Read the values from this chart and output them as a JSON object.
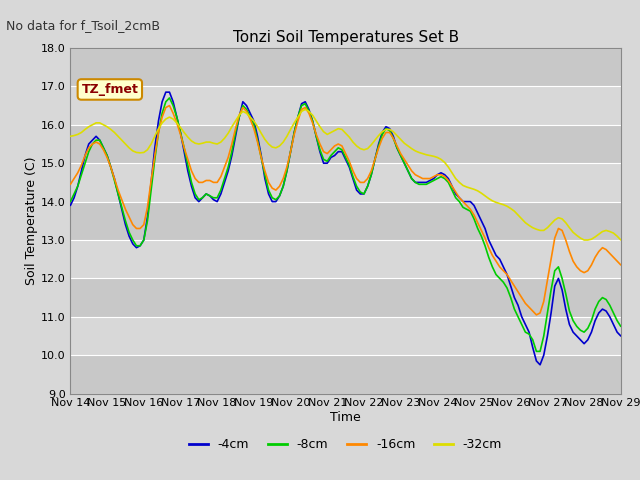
{
  "title": "Tonzi Soil Temperatures Set B",
  "no_data_label": "No data for f_Tsoil_2cmB",
  "tz_fmet_label": "TZ_fmet",
  "xlabel": "Time",
  "ylabel": "Soil Temperature (C)",
  "ylim": [
    9.0,
    18.0
  ],
  "yticks": [
    9.0,
    10.0,
    11.0,
    12.0,
    13.0,
    14.0,
    15.0,
    16.0,
    17.0,
    18.0
  ],
  "x_start_day": 14,
  "x_end_day": 29,
  "xtick_days": [
    14,
    15,
    16,
    17,
    18,
    19,
    20,
    21,
    22,
    23,
    24,
    25,
    26,
    27,
    28,
    29
  ],
  "colors": {
    "-4cm": "#0000cc",
    "-8cm": "#00cc00",
    "-16cm": "#ff8800",
    "-32cm": "#dddd00"
  },
  "background_color": "#d8d8d8",
  "plot_bg_color": "#d8d8d8",
  "grid_color": "#ffffff",
  "series": {
    "-4cm": {
      "x": [
        0,
        0.1,
        0.2,
        0.3,
        0.4,
        0.5,
        0.6,
        0.7,
        0.8,
        0.9,
        1.0,
        1.1,
        1.2,
        1.3,
        1.4,
        1.5,
        1.6,
        1.7,
        1.8,
        1.9,
        2.0,
        2.1,
        2.2,
        2.3,
        2.4,
        2.5,
        2.6,
        2.7,
        2.8,
        2.9,
        3.0,
        3.1,
        3.2,
        3.3,
        3.4,
        3.5,
        3.6,
        3.7,
        3.8,
        3.9,
        4.0,
        4.1,
        4.2,
        4.3,
        4.4,
        4.5,
        4.6,
        4.7,
        4.8,
        4.9,
        5.0,
        5.1,
        5.2,
        5.3,
        5.4,
        5.5,
        5.6,
        5.7,
        5.8,
        5.9,
        6.0,
        6.1,
        6.2,
        6.3,
        6.4,
        6.5,
        6.6,
        6.7,
        6.8,
        6.9,
        7.0,
        7.1,
        7.2,
        7.3,
        7.4,
        7.5,
        7.6,
        7.7,
        7.8,
        7.9,
        8.0,
        8.1,
        8.2,
        8.3,
        8.4,
        8.5,
        8.6,
        8.7,
        8.8,
        8.9,
        9.0,
        9.1,
        9.2,
        9.3,
        9.4,
        9.5,
        9.6,
        9.7,
        9.8,
        9.9,
        10.0,
        10.1,
        10.2,
        10.3,
        10.4,
        10.5,
        10.6,
        10.7,
        10.8,
        10.9,
        11.0,
        11.1,
        11.2,
        11.3,
        11.4,
        11.5,
        11.6,
        11.7,
        11.8,
        11.9,
        12.0,
        12.1,
        12.2,
        12.3,
        12.4,
        12.5,
        12.6,
        12.7,
        12.8,
        12.9,
        13.0,
        13.1,
        13.2,
        13.3,
        13.4,
        13.5,
        13.6,
        13.7,
        13.8,
        13.9,
        14.0,
        14.1,
        14.2,
        14.3,
        14.4,
        14.5,
        14.6,
        14.7,
        14.8,
        14.9,
        15.0
      ],
      "y": [
        13.9,
        14.1,
        14.4,
        14.8,
        15.2,
        15.5,
        15.6,
        15.7,
        15.6,
        15.4,
        15.2,
        14.9,
        14.6,
        14.2,
        13.8,
        13.4,
        13.1,
        12.9,
        12.8,
        12.85,
        13.0,
        13.6,
        14.5,
        15.4,
        16.1,
        16.6,
        16.85,
        16.85,
        16.6,
        16.2,
        15.8,
        15.3,
        14.8,
        14.4,
        14.1,
        14.0,
        14.1,
        14.2,
        14.15,
        14.05,
        14.0,
        14.2,
        14.5,
        14.8,
        15.2,
        15.7,
        16.2,
        16.6,
        16.5,
        16.3,
        16.1,
        15.7,
        15.2,
        14.6,
        14.2,
        14.0,
        14.0,
        14.15,
        14.4,
        14.8,
        15.3,
        15.8,
        16.2,
        16.55,
        16.6,
        16.4,
        16.1,
        15.7,
        15.3,
        15.0,
        15.0,
        15.15,
        15.2,
        15.3,
        15.3,
        15.1,
        14.9,
        14.6,
        14.3,
        14.2,
        14.2,
        14.4,
        14.7,
        15.1,
        15.5,
        15.8,
        15.95,
        15.9,
        15.7,
        15.4,
        15.2,
        15.0,
        14.8,
        14.6,
        14.5,
        14.5,
        14.5,
        14.5,
        14.55,
        14.6,
        14.7,
        14.75,
        14.7,
        14.6,
        14.4,
        14.2,
        14.1,
        14.0,
        14.0,
        14.0,
        13.9,
        13.7,
        13.5,
        13.3,
        13.0,
        12.8,
        12.6,
        12.5,
        12.3,
        12.1,
        11.8,
        11.5,
        11.3,
        11.0,
        10.8,
        10.6,
        10.2,
        9.85,
        9.75,
        10.0,
        10.5,
        11.1,
        11.8,
        12.0,
        11.7,
        11.2,
        10.8,
        10.6,
        10.5,
        10.4,
        10.3,
        10.4,
        10.6,
        10.9,
        11.1,
        11.2,
        11.15,
        11.0,
        10.8,
        10.6,
        10.5
      ]
    },
    "-8cm": {
      "x": [
        0,
        0.1,
        0.2,
        0.3,
        0.4,
        0.5,
        0.6,
        0.7,
        0.8,
        0.9,
        1.0,
        1.1,
        1.2,
        1.3,
        1.4,
        1.5,
        1.6,
        1.7,
        1.8,
        1.9,
        2.0,
        2.1,
        2.2,
        2.3,
        2.4,
        2.5,
        2.6,
        2.7,
        2.8,
        2.9,
        3.0,
        3.1,
        3.2,
        3.3,
        3.4,
        3.5,
        3.6,
        3.7,
        3.8,
        3.9,
        4.0,
        4.1,
        4.2,
        4.3,
        4.4,
        4.5,
        4.6,
        4.7,
        4.8,
        4.9,
        5.0,
        5.1,
        5.2,
        5.3,
        5.4,
        5.5,
        5.6,
        5.7,
        5.8,
        5.9,
        6.0,
        6.1,
        6.2,
        6.3,
        6.4,
        6.5,
        6.6,
        6.7,
        6.8,
        6.9,
        7.0,
        7.1,
        7.2,
        7.3,
        7.4,
        7.5,
        7.6,
        7.7,
        7.8,
        7.9,
        8.0,
        8.1,
        8.2,
        8.3,
        8.4,
        8.5,
        8.6,
        8.7,
        8.8,
        8.9,
        9.0,
        9.1,
        9.2,
        9.3,
        9.4,
        9.5,
        9.6,
        9.7,
        9.8,
        9.9,
        10.0,
        10.1,
        10.2,
        10.3,
        10.4,
        10.5,
        10.6,
        10.7,
        10.8,
        10.9,
        11.0,
        11.1,
        11.2,
        11.3,
        11.4,
        11.5,
        11.6,
        11.7,
        11.8,
        11.9,
        12.0,
        12.1,
        12.2,
        12.3,
        12.4,
        12.5,
        12.6,
        12.7,
        12.8,
        12.9,
        13.0,
        13.1,
        13.2,
        13.3,
        13.4,
        13.5,
        13.6,
        13.7,
        13.8,
        13.9,
        14.0,
        14.1,
        14.2,
        14.3,
        14.4,
        14.5,
        14.6,
        14.7,
        14.8,
        14.9,
        15.0
      ],
      "y": [
        14.0,
        14.2,
        14.4,
        14.7,
        15.0,
        15.3,
        15.5,
        15.6,
        15.6,
        15.4,
        15.2,
        14.9,
        14.55,
        14.2,
        13.85,
        13.5,
        13.2,
        13.0,
        12.85,
        12.85,
        13.0,
        13.5,
        14.3,
        15.1,
        15.8,
        16.3,
        16.6,
        16.7,
        16.5,
        16.2,
        15.8,
        15.4,
        14.95,
        14.5,
        14.2,
        14.05,
        14.1,
        14.2,
        14.15,
        14.1,
        14.1,
        14.3,
        14.6,
        14.9,
        15.3,
        15.8,
        16.2,
        16.5,
        16.4,
        16.2,
        16.0,
        15.6,
        15.15,
        14.7,
        14.3,
        14.1,
        14.05,
        14.15,
        14.4,
        14.8,
        15.3,
        15.8,
        16.2,
        16.5,
        16.55,
        16.35,
        16.1,
        15.7,
        15.35,
        15.1,
        15.05,
        15.2,
        15.3,
        15.4,
        15.35,
        15.15,
        14.95,
        14.65,
        14.4,
        14.25,
        14.2,
        14.4,
        14.7,
        15.1,
        15.45,
        15.75,
        15.9,
        15.85,
        15.65,
        15.4,
        15.2,
        15.0,
        14.8,
        14.6,
        14.5,
        14.45,
        14.45,
        14.45,
        14.5,
        14.55,
        14.6,
        14.65,
        14.6,
        14.5,
        14.3,
        14.1,
        14.0,
        13.85,
        13.8,
        13.75,
        13.55,
        13.3,
        13.1,
        12.85,
        12.55,
        12.3,
        12.1,
        12.0,
        11.9,
        11.75,
        11.5,
        11.2,
        11.0,
        10.8,
        10.6,
        10.55,
        10.4,
        10.1,
        10.1,
        10.5,
        11.1,
        11.7,
        12.2,
        12.3,
        12.0,
        11.6,
        11.15,
        10.9,
        10.75,
        10.65,
        10.6,
        10.7,
        10.9,
        11.2,
        11.4,
        11.5,
        11.45,
        11.3,
        11.1,
        10.9,
        10.75
      ]
    },
    "-16cm": {
      "x": [
        0,
        0.1,
        0.2,
        0.3,
        0.4,
        0.5,
        0.6,
        0.7,
        0.8,
        0.9,
        1.0,
        1.1,
        1.2,
        1.3,
        1.4,
        1.5,
        1.6,
        1.7,
        1.8,
        1.9,
        2.0,
        2.1,
        2.2,
        2.3,
        2.4,
        2.5,
        2.6,
        2.7,
        2.8,
        2.9,
        3.0,
        3.1,
        3.2,
        3.3,
        3.4,
        3.5,
        3.6,
        3.7,
        3.8,
        3.9,
        4.0,
        4.1,
        4.2,
        4.3,
        4.4,
        4.5,
        4.6,
        4.7,
        4.8,
        4.9,
        5.0,
        5.1,
        5.2,
        5.3,
        5.4,
        5.5,
        5.6,
        5.7,
        5.8,
        5.9,
        6.0,
        6.1,
        6.2,
        6.3,
        6.4,
        6.5,
        6.6,
        6.7,
        6.8,
        6.9,
        7.0,
        7.1,
        7.2,
        7.3,
        7.4,
        7.5,
        7.6,
        7.7,
        7.8,
        7.9,
        8.0,
        8.1,
        8.2,
        8.3,
        8.4,
        8.5,
        8.6,
        8.7,
        8.8,
        8.9,
        9.0,
        9.1,
        9.2,
        9.3,
        9.4,
        9.5,
        9.6,
        9.7,
        9.8,
        9.9,
        10.0,
        10.1,
        10.2,
        10.3,
        10.4,
        10.5,
        10.6,
        10.7,
        10.8,
        10.9,
        11.0,
        11.1,
        11.2,
        11.3,
        11.4,
        11.5,
        11.6,
        11.7,
        11.8,
        11.9,
        12.0,
        12.1,
        12.2,
        12.3,
        12.4,
        12.5,
        12.6,
        12.7,
        12.8,
        12.9,
        13.0,
        13.1,
        13.2,
        13.3,
        13.4,
        13.5,
        13.6,
        13.7,
        13.8,
        13.9,
        14.0,
        14.1,
        14.2,
        14.3,
        14.4,
        14.5,
        14.6,
        14.7,
        14.8,
        14.9,
        15.0
      ],
      "y": [
        14.45,
        14.6,
        14.75,
        14.95,
        15.2,
        15.4,
        15.5,
        15.55,
        15.5,
        15.35,
        15.15,
        14.9,
        14.6,
        14.3,
        14.05,
        13.8,
        13.6,
        13.4,
        13.3,
        13.3,
        13.4,
        13.85,
        14.55,
        15.2,
        15.8,
        16.2,
        16.45,
        16.5,
        16.3,
        16.05,
        15.75,
        15.4,
        15.1,
        14.8,
        14.6,
        14.5,
        14.5,
        14.55,
        14.55,
        14.5,
        14.5,
        14.65,
        14.9,
        15.15,
        15.5,
        15.9,
        16.25,
        16.45,
        16.35,
        16.15,
        15.9,
        15.55,
        15.15,
        14.8,
        14.5,
        14.35,
        14.3,
        14.4,
        14.6,
        14.9,
        15.3,
        15.75,
        16.1,
        16.4,
        16.45,
        16.3,
        16.05,
        15.75,
        15.5,
        15.3,
        15.25,
        15.35,
        15.45,
        15.5,
        15.45,
        15.25,
        15.05,
        14.8,
        14.6,
        14.5,
        14.5,
        14.6,
        14.8,
        15.1,
        15.4,
        15.65,
        15.8,
        15.8,
        15.65,
        15.45,
        15.25,
        15.1,
        14.95,
        14.8,
        14.7,
        14.65,
        14.6,
        14.6,
        14.6,
        14.65,
        14.7,
        14.7,
        14.65,
        14.55,
        14.4,
        14.25,
        14.1,
        14.0,
        13.9,
        13.8,
        13.65,
        13.45,
        13.25,
        13.05,
        12.8,
        12.6,
        12.45,
        12.3,
        12.2,
        12.1,
        11.95,
        11.8,
        11.65,
        11.5,
        11.35,
        11.25,
        11.15,
        11.05,
        11.1,
        11.4,
        11.95,
        12.5,
        13.05,
        13.3,
        13.25,
        13.0,
        12.7,
        12.45,
        12.3,
        12.2,
        12.15,
        12.2,
        12.35,
        12.55,
        12.7,
        12.8,
        12.75,
        12.65,
        12.55,
        12.45,
        12.35
      ]
    },
    "-32cm": {
      "x": [
        0,
        0.1,
        0.2,
        0.3,
        0.4,
        0.5,
        0.6,
        0.7,
        0.8,
        0.9,
        1.0,
        1.1,
        1.2,
        1.3,
        1.4,
        1.5,
        1.6,
        1.7,
        1.8,
        1.9,
        2.0,
        2.1,
        2.2,
        2.3,
        2.4,
        2.5,
        2.6,
        2.7,
        2.8,
        2.9,
        3.0,
        3.1,
        3.2,
        3.3,
        3.4,
        3.5,
        3.6,
        3.7,
        3.8,
        3.9,
        4.0,
        4.1,
        4.2,
        4.3,
        4.4,
        4.5,
        4.6,
        4.7,
        4.8,
        4.9,
        5.0,
        5.1,
        5.2,
        5.3,
        5.4,
        5.5,
        5.6,
        5.7,
        5.8,
        5.9,
        6.0,
        6.1,
        6.2,
        6.3,
        6.4,
        6.5,
        6.6,
        6.7,
        6.8,
        6.9,
        7.0,
        7.1,
        7.2,
        7.3,
        7.4,
        7.5,
        7.6,
        7.7,
        7.8,
        7.9,
        8.0,
        8.1,
        8.2,
        8.3,
        8.4,
        8.5,
        8.6,
        8.7,
        8.8,
        8.9,
        9.0,
        9.1,
        9.2,
        9.3,
        9.4,
        9.5,
        9.6,
        9.7,
        9.8,
        9.9,
        10.0,
        10.1,
        10.2,
        10.3,
        10.4,
        10.5,
        10.6,
        10.7,
        10.8,
        10.9,
        11.0,
        11.1,
        11.2,
        11.3,
        11.4,
        11.5,
        11.6,
        11.7,
        11.8,
        11.9,
        12.0,
        12.1,
        12.2,
        12.3,
        12.4,
        12.5,
        12.6,
        12.7,
        12.8,
        12.9,
        13.0,
        13.1,
        13.2,
        13.3,
        13.4,
        13.5,
        13.6,
        13.7,
        13.8,
        13.9,
        14.0,
        14.1,
        14.2,
        14.3,
        14.4,
        14.5,
        14.6,
        14.7,
        14.8,
        14.9,
        15.0
      ],
      "y": [
        15.7,
        15.72,
        15.75,
        15.8,
        15.88,
        15.95,
        16.0,
        16.05,
        16.05,
        16.0,
        15.95,
        15.88,
        15.8,
        15.7,
        15.6,
        15.5,
        15.4,
        15.32,
        15.28,
        15.27,
        15.28,
        15.35,
        15.5,
        15.7,
        15.9,
        16.05,
        16.15,
        16.2,
        16.15,
        16.05,
        15.93,
        15.8,
        15.68,
        15.58,
        15.52,
        15.5,
        15.52,
        15.55,
        15.55,
        15.52,
        15.5,
        15.55,
        15.65,
        15.78,
        15.95,
        16.1,
        16.25,
        16.35,
        16.3,
        16.2,
        16.1,
        15.95,
        15.78,
        15.62,
        15.5,
        15.42,
        15.4,
        15.45,
        15.55,
        15.7,
        15.88,
        16.05,
        16.2,
        16.35,
        16.4,
        16.35,
        16.25,
        16.1,
        15.95,
        15.82,
        15.75,
        15.8,
        15.85,
        15.9,
        15.88,
        15.78,
        15.68,
        15.55,
        15.45,
        15.38,
        15.35,
        15.38,
        15.48,
        15.6,
        15.72,
        15.82,
        15.88,
        15.88,
        15.82,
        15.72,
        15.62,
        15.52,
        15.45,
        15.38,
        15.32,
        15.28,
        15.25,
        15.22,
        15.2,
        15.18,
        15.15,
        15.1,
        15.02,
        14.9,
        14.75,
        14.6,
        14.5,
        14.42,
        14.38,
        14.35,
        14.32,
        14.28,
        14.22,
        14.15,
        14.08,
        14.02,
        13.98,
        13.95,
        13.92,
        13.88,
        13.82,
        13.75,
        13.65,
        13.55,
        13.45,
        13.38,
        13.32,
        13.28,
        13.25,
        13.25,
        13.32,
        13.42,
        13.52,
        13.58,
        13.55,
        13.45,
        13.32,
        13.2,
        13.12,
        13.05,
        13.0,
        13.0,
        13.02,
        13.08,
        13.15,
        13.22,
        13.25,
        13.22,
        13.18,
        13.1,
        13.0
      ]
    }
  },
  "legend_entries": [
    "-4cm",
    "-8cm",
    "-16cm",
    "-32cm"
  ],
  "title_fontsize": 11,
  "axis_label_fontsize": 9,
  "tick_fontsize": 8,
  "legend_fontsize": 9,
  "no_data_fontsize": 9,
  "tz_fontsize": 9
}
